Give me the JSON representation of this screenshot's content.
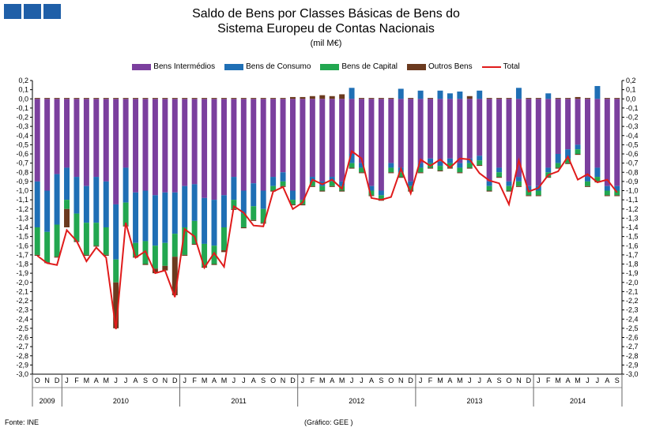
{
  "header": {
    "logo_icon": "gee-logo",
    "title_line1": "Saldo de Bens por Classes Básicas de Bens do",
    "title_line2": "Sistema Europeu de Contas Nacionais",
    "subtitle": "(mil M€)"
  },
  "footer": {
    "source": "Fonte: INE",
    "credit": "(Gráfico: GEE )"
  },
  "chart_data": {
    "type": "bar",
    "stacked": true,
    "title": "Saldo de Bens por Classes Básicas de Bens do Sistema Europeu de Contas Nacionais",
    "subtitle": "(mil M€)",
    "ylim": [
      -3.0,
      0.2
    ],
    "ytick_step": 0.1,
    "grid": false,
    "legend_position": "top",
    "yticks": [
      "0,2",
      "0,1",
      "0,0",
      "-0,1",
      "-0,2",
      "-0,3",
      "-0,4",
      "-0,5",
      "-0,6",
      "-0,7",
      "-0,8",
      "-0,9",
      "-1,0",
      "-1,1",
      "-1,2",
      "-1,3",
      "-1,4",
      "-1,5",
      "-1,6",
      "-1,7",
      "-1,8",
      "-1,9",
      "-2,0",
      "-2,1",
      "-2,2",
      "-2,3",
      "-2,4",
      "-2,5",
      "-2,6",
      "-2,7",
      "-2,8",
      "-2,9",
      "-3,0"
    ],
    "categories": [
      "O",
      "N",
      "D",
      "J",
      "F",
      "M",
      "A",
      "M",
      "J",
      "J",
      "A",
      "S",
      "O",
      "N",
      "D",
      "J",
      "F",
      "M",
      "A",
      "M",
      "J",
      "J",
      "A",
      "S",
      "O",
      "N",
      "D",
      "J",
      "F",
      "M",
      "A",
      "M",
      "J",
      "J",
      "A",
      "S",
      "O",
      "N",
      "D",
      "J",
      "F",
      "M",
      "A",
      "M",
      "J",
      "J",
      "A",
      "S",
      "O",
      "N",
      "D",
      "J",
      "F",
      "M",
      "A",
      "M",
      "J",
      "J",
      "A",
      "S"
    ],
    "years": [
      {
        "label": "2009",
        "start": 0,
        "count": 3
      },
      {
        "label": "2010",
        "start": 3,
        "count": 12
      },
      {
        "label": "2011",
        "start": 15,
        "count": 12
      },
      {
        "label": "2012",
        "start": 27,
        "count": 12
      },
      {
        "label": "2013",
        "start": 39,
        "count": 12
      },
      {
        "label": "2014",
        "start": 51,
        "count": 9
      }
    ],
    "series": [
      {
        "name": "Bens Intermédios",
        "color": "#7b3f9e",
        "kind": "bar",
        "values": [
          -0.9,
          -1.0,
          -0.82,
          -0.75,
          -0.85,
          -0.95,
          -0.85,
          -0.9,
          -1.15,
          -0.75,
          -1.02,
          -1.0,
          -1.05,
          -1.02,
          -1.02,
          -0.95,
          -0.93,
          -1.08,
          -1.1,
          -1.05,
          -0.85,
          -1.0,
          -0.92,
          -1.0,
          -0.85,
          -0.8,
          -1.0,
          -1.1,
          -0.85,
          -0.9,
          -0.85,
          -0.9,
          -0.6,
          -0.7,
          -0.95,
          -1.0,
          -0.7,
          -0.75,
          -0.9,
          -0.7,
          -0.65,
          -0.68,
          -0.65,
          -0.7,
          -0.65,
          -0.62,
          -0.9,
          -0.75,
          -0.9,
          -0.85,
          -0.95,
          -0.95,
          -0.75,
          -0.6,
          -0.55,
          -0.5,
          -0.85,
          -0.75,
          -0.95,
          -0.95
        ]
      },
      {
        "name": "Bens de Consumo",
        "color": "#1f6fb5",
        "kind": "bar",
        "values": [
          -0.5,
          -0.45,
          -0.55,
          -0.35,
          -0.4,
          -0.4,
          -0.5,
          -0.5,
          -0.6,
          -0.38,
          -0.55,
          -0.55,
          -0.55,
          -0.55,
          -0.45,
          -0.45,
          -0.4,
          -0.5,
          -0.5,
          -0.35,
          -0.25,
          -0.25,
          -0.25,
          -0.2,
          -0.1,
          -0.1,
          -0.1,
          0.0,
          -0.05,
          -0.05,
          -0.05,
          -0.05,
          -0.1,
          -0.05,
          -0.05,
          -0.05,
          -0.05,
          -0.05,
          -0.05,
          -0.05,
          -0.05,
          -0.05,
          -0.05,
          -0.05,
          -0.05,
          -0.05,
          -0.05,
          -0.05,
          -0.05,
          -0.05,
          -0.05,
          -0.05,
          -0.05,
          -0.1,
          -0.1,
          -0.05,
          -0.05,
          -0.1,
          -0.05,
          -0.05
        ]
      },
      {
        "name": "Bens de Capital",
        "color": "#22a750",
        "kind": "bar",
        "values": [
          -0.3,
          -0.33,
          -0.35,
          -0.1,
          -0.3,
          -0.35,
          -0.25,
          -0.3,
          -0.25,
          -0.25,
          -0.15,
          -0.25,
          -0.25,
          -0.25,
          -0.25,
          -0.3,
          -0.25,
          -0.25,
          -0.2,
          -0.25,
          -0.1,
          -0.15,
          -0.15,
          -0.15,
          -0.05,
          -0.05,
          -0.05,
          -0.05,
          -0.05,
          -0.05,
          -0.05,
          -0.05,
          -0.05,
          -0.05,
          -0.05,
          -0.05,
          -0.05,
          -0.05,
          -0.05,
          -0.05,
          -0.05,
          -0.05,
          -0.05,
          -0.05,
          -0.05,
          -0.05,
          -0.05,
          -0.05,
          -0.05,
          -0.05,
          -0.05,
          -0.05,
          -0.05,
          -0.05,
          -0.05,
          -0.05,
          -0.05,
          -0.05,
          -0.05,
          -0.05
        ]
      },
      {
        "name": "Outros Bens",
        "color": "#6b3a1f",
        "kind": "bar",
        "values": [
          -0.01,
          -0.01,
          -0.01,
          -0.2,
          -0.01,
          -0.01,
          -0.01,
          -0.01,
          -0.5,
          -0.01,
          -0.01,
          -0.01,
          -0.05,
          -0.05,
          -0.42,
          -0.01,
          -0.01,
          -0.01,
          -0.01,
          -0.02,
          -0.01,
          -0.01,
          -0.01,
          -0.01,
          -0.01,
          -0.01,
          -0.01,
          -0.01,
          -0.01,
          -0.01,
          -0.01,
          -0.01,
          -0.01,
          -0.01,
          -0.01,
          -0.01,
          -0.01,
          -0.01,
          -0.01,
          -0.01,
          -0.01,
          -0.01,
          -0.01,
          -0.01,
          -0.01,
          -0.01,
          -0.01,
          -0.01,
          -0.01,
          -0.01,
          -0.01,
          -0.01,
          -0.01,
          -0.01,
          -0.01,
          -0.01,
          -0.01,
          -0.01,
          -0.01,
          -0.01
        ]
      },
      {
        "name": "Total",
        "color": "#e01b1b",
        "kind": "line",
        "values": [
          -1.71,
          -1.79,
          -1.81,
          -1.43,
          -1.55,
          -1.77,
          -1.62,
          -1.73,
          -2.51,
          -1.35,
          -1.73,
          -1.66,
          -1.9,
          -1.87,
          -2.16,
          -1.42,
          -1.5,
          -1.84,
          -1.68,
          -1.83,
          -1.17,
          -1.24,
          -1.38,
          -1.39,
          -1.01,
          -0.96,
          -1.2,
          -1.13,
          -0.88,
          -0.93,
          -0.88,
          -0.98,
          -0.57,
          -0.65,
          -1.08,
          -1.1,
          -1.07,
          -0.76,
          -1.03,
          -0.66,
          -0.73,
          -0.66,
          -0.75,
          -0.65,
          -0.66,
          -0.81,
          -0.89,
          -0.92,
          -1.15,
          -0.67,
          -1.01,
          -0.97,
          -0.83,
          -0.79,
          -0.63,
          -0.88,
          -0.82,
          -0.91,
          -0.88,
          -1.02
        ]
      }
    ],
    "positive_tops": [
      0.01,
      0.01,
      0.01,
      0.01,
      0.01,
      0.01,
      0.01,
      0.01,
      0.01,
      0.01,
      0.01,
      0.01,
      0.01,
      0.01,
      0.01,
      0.01,
      0.01,
      0.01,
      0.01,
      0.01,
      0.01,
      0.01,
      0.01,
      0.01,
      0.01,
      0.01,
      0.02,
      0.02,
      0.03,
      0.04,
      0.03,
      0.05,
      0.12,
      0.01,
      0.01,
      0.01,
      0.01,
      0.11,
      0.01,
      0.09,
      0.01,
      0.09,
      0.06,
      0.08,
      0.03,
      0.09,
      0.01,
      0.01,
      0.01,
      0.12,
      0.01,
      0.01,
      0.06,
      0.01,
      0.01,
      0.02,
      0.01,
      0.14,
      0.01,
      0.01
    ]
  }
}
